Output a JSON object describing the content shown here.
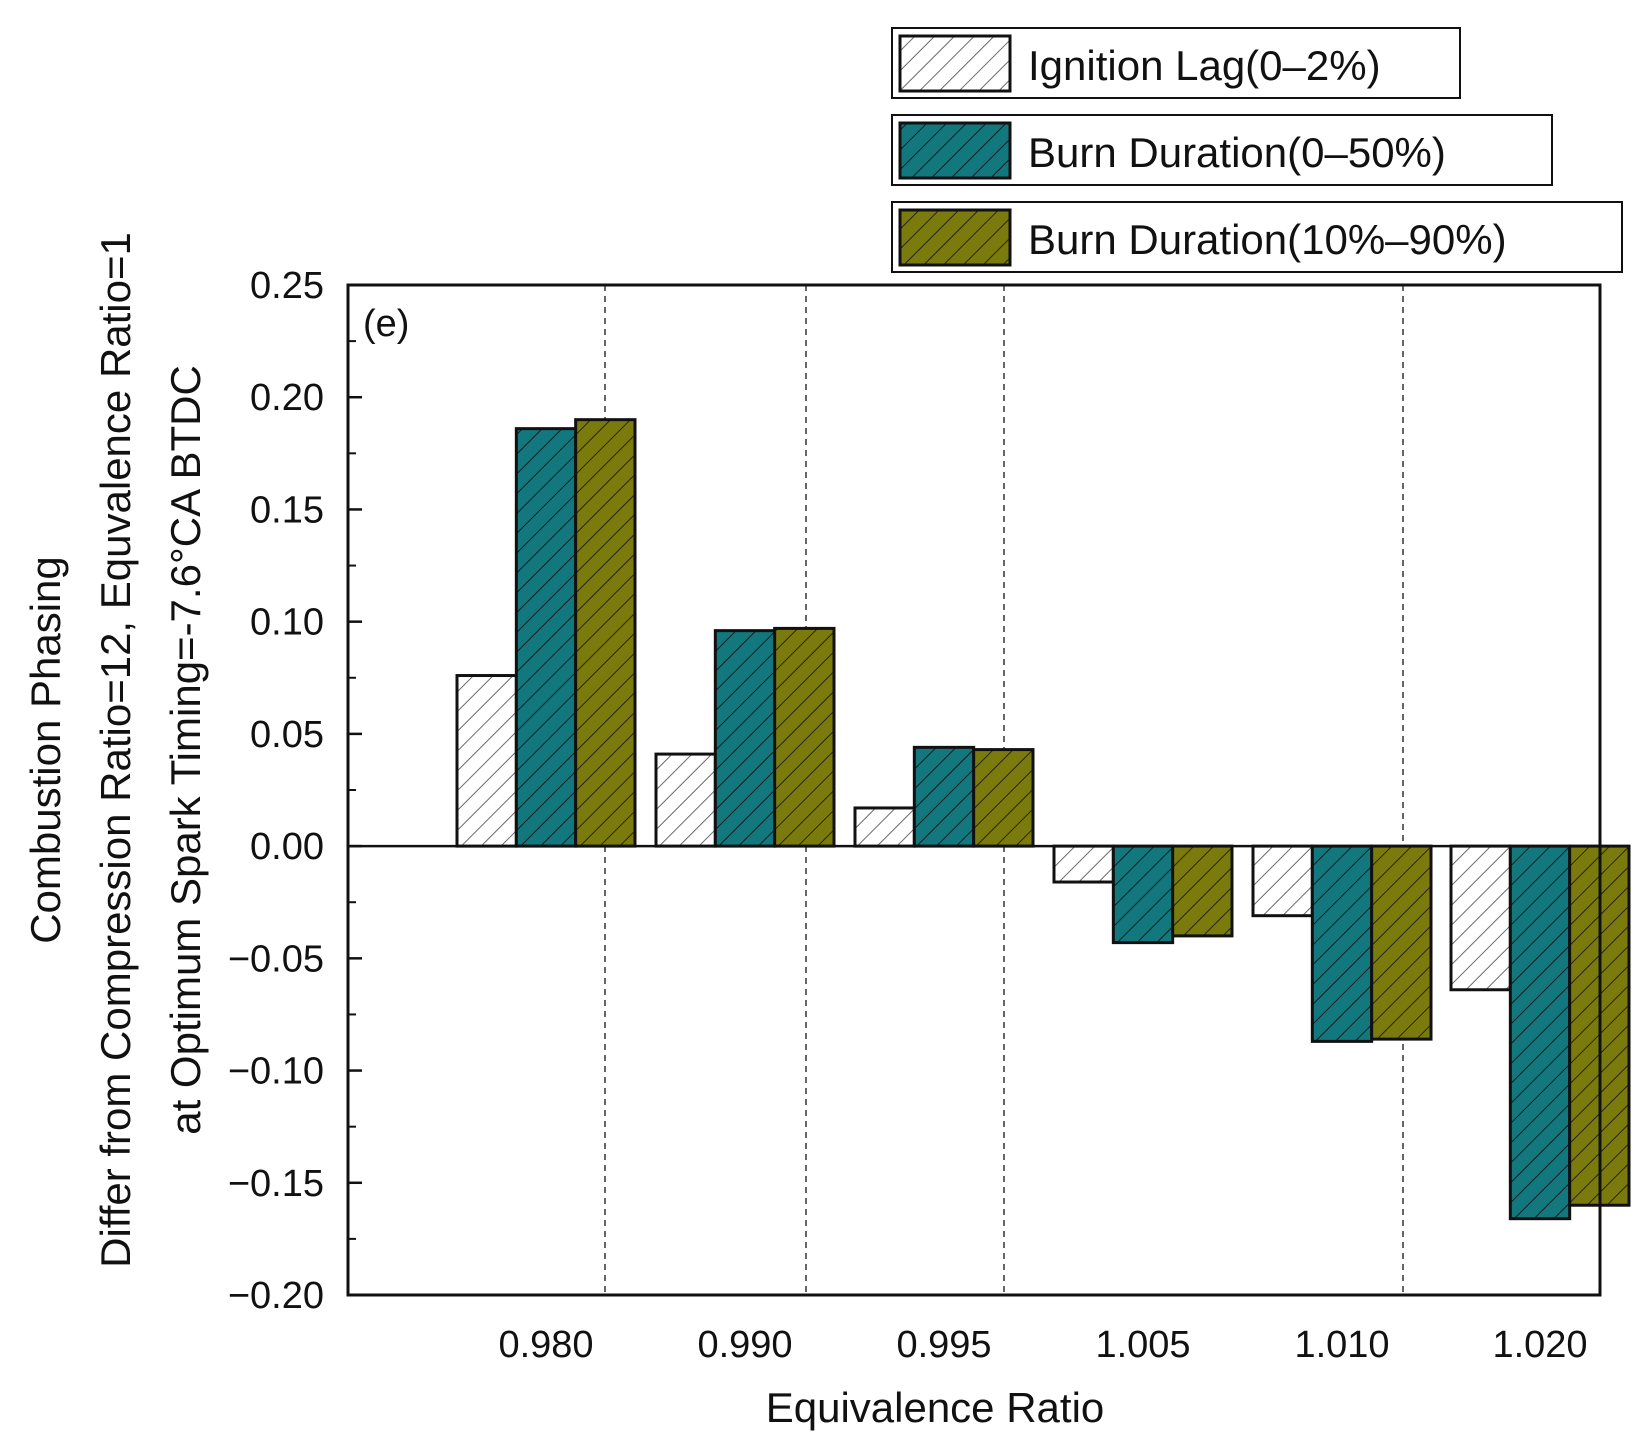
{
  "chart_data": {
    "type": "bar",
    "panel_label": "(e)",
    "categories": [
      "0.980",
      "0.990",
      "0.995",
      "1.005",
      "1.010",
      "1.020"
    ],
    "series": [
      {
        "name": "Ignition Lag(0–2%)",
        "color": "#ffffff",
        "hatch_color": "#6a6a6a",
        "values": [
          0.076,
          0.041,
          0.017,
          -0.016,
          -0.031,
          -0.064
        ]
      },
      {
        "name": "Burn Duration(0–50%)",
        "color": "#13787e",
        "hatch_color": "#0b1f22",
        "values": [
          0.186,
          0.096,
          0.044,
          -0.043,
          -0.087,
          -0.166
        ]
      },
      {
        "name": "Burn Duration(10%–90%)",
        "color": "#7b7b0d",
        "hatch_color": "#25250a",
        "values": [
          0.19,
          0.097,
          0.043,
          -0.04,
          -0.086,
          -0.16
        ]
      }
    ],
    "xlabel": "Equivalence Ratio",
    "ylabel_lines": [
      "Combustion Phasing",
      "Differ from Compression Ratio=12, Equvalence Ratio=1",
      "at Optimum Spark Timing=-7.6°CA BTDC"
    ],
    "ylim": [
      -0.2,
      0.25
    ],
    "yticks": [
      0.25,
      0.2,
      0.15,
      0.1,
      0.05,
      0.0,
      -0.05,
      -0.1,
      -0.15,
      -0.2
    ],
    "ytick_labels": [
      "0.25",
      "0.20",
      "0.15",
      "0.10",
      "0.05",
      "0.00",
      "−0.05",
      "−0.10",
      "−0.15",
      "−0.20"
    ],
    "grid": "dashed vertical separators between groups",
    "legend_position": "top-right, above plot"
  }
}
